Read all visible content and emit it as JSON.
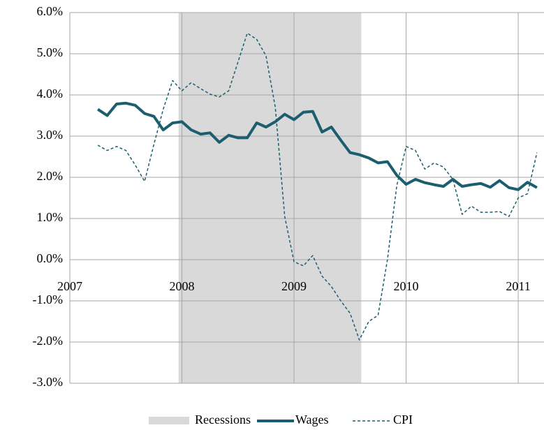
{
  "chart_data": {
    "type": "line",
    "x": [
      2007.25,
      2007.333,
      2007.417,
      2007.5,
      2007.583,
      2007.667,
      2007.75,
      2007.833,
      2007.917,
      2008.0,
      2008.083,
      2008.167,
      2008.25,
      2008.333,
      2008.417,
      2008.5,
      2008.583,
      2008.667,
      2008.75,
      2008.833,
      2008.917,
      2009.0,
      2009.083,
      2009.167,
      2009.25,
      2009.333,
      2009.417,
      2009.5,
      2009.583,
      2009.667,
      2009.75,
      2009.833,
      2009.917,
      2010.0,
      2010.083,
      2010.167,
      2010.25,
      2010.333,
      2010.417,
      2010.5,
      2010.583,
      2010.667,
      2010.75,
      2010.833,
      2010.917,
      2011.0,
      2011.083,
      2011.167
    ],
    "series": [
      {
        "name": "Wages",
        "color": "#1b5e6e",
        "dash": false,
        "values": [
          3.65,
          3.5,
          3.78,
          3.8,
          3.75,
          3.55,
          3.48,
          3.15,
          3.32,
          3.35,
          3.15,
          3.05,
          3.08,
          2.85,
          3.02,
          2.96,
          2.96,
          3.32,
          3.22,
          3.35,
          3.53,
          3.4,
          3.58,
          3.6,
          3.1,
          3.22,
          2.9,
          2.6,
          2.55,
          2.47,
          2.35,
          2.38,
          2.05,
          1.83,
          1.95,
          1.87,
          1.82,
          1.78,
          1.95,
          1.78,
          1.82,
          1.85,
          1.76,
          1.92,
          1.75,
          1.7,
          1.88,
          1.75
        ]
      },
      {
        "name": "CPI",
        "color": "#1b5e6e",
        "dash": true,
        "values": [
          2.78,
          2.65,
          2.75,
          2.65,
          2.3,
          1.9,
          2.8,
          3.65,
          4.35,
          4.1,
          4.3,
          4.15,
          4.02,
          3.95,
          4.1,
          4.8,
          5.5,
          5.35,
          4.95,
          3.7,
          1.05,
          -0.05,
          -0.15,
          0.1,
          -0.4,
          -0.65,
          -1.0,
          -1.3,
          -1.95,
          -1.5,
          -1.35,
          0.0,
          1.8,
          2.75,
          2.65,
          2.2,
          2.35,
          2.25,
          1.95,
          1.1,
          1.3,
          1.15,
          1.15,
          1.17,
          1.05,
          1.5,
          1.6,
          2.6
        ]
      }
    ],
    "recessions": [
      {
        "name": "Recessions",
        "start": 2007.97,
        "end": 2009.6,
        "color": "#d9d9d9"
      }
    ],
    "xlim": [
      2007,
      2011.23
    ],
    "xticks": [
      2007,
      2008,
      2009,
      2010,
      2011
    ],
    "ylim": [
      -3,
      6
    ],
    "yticks": [
      {
        "value": -3,
        "label": "-3.0%"
      },
      {
        "value": -2,
        "label": "-2.0%"
      },
      {
        "value": -1,
        "label": "-1.0%"
      },
      {
        "value": 0,
        "label": "0.0%"
      },
      {
        "value": 1,
        "label": "1.0%"
      },
      {
        "value": 2,
        "label": "2.0%"
      },
      {
        "value": 3,
        "label": "3.0%"
      },
      {
        "value": 4,
        "label": "4.0%"
      },
      {
        "value": 5,
        "label": "5.0%"
      },
      {
        "value": 6,
        "label": "6.0%"
      }
    ],
    "grid": true
  }
}
